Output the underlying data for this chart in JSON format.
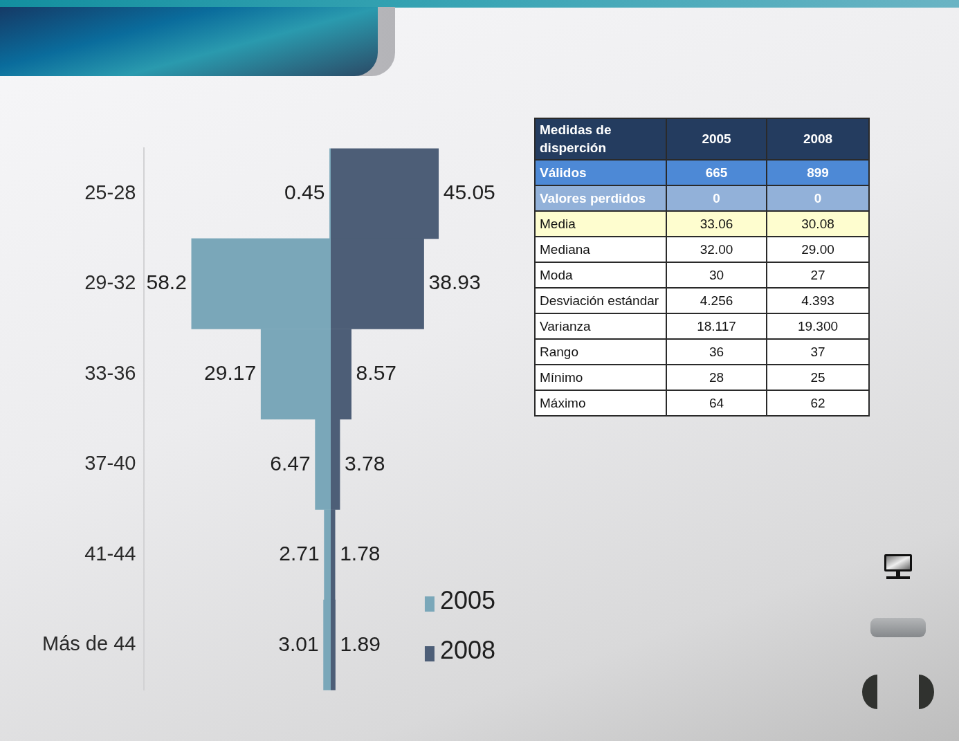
{
  "chart_data": [
    {
      "type": "bar",
      "orientation": "horizontal",
      "categories": [
        "25-28",
        "29-32",
        "33-36",
        "37-40",
        "41-44",
        "Más de 44"
      ],
      "series": [
        {
          "name": "2005",
          "color": "#7aa7b9",
          "values": [
            0.45,
            58.2,
            29.17,
            6.47,
            2.71,
            3.01
          ]
        }
      ],
      "xlim": [
        78,
        0
      ],
      "data_labels": true,
      "tick_labels": "y",
      "legend": "bottom right"
    },
    {
      "type": "bar",
      "orientation": "horizontal",
      "categories": [
        null,
        null,
        null,
        null,
        null,
        null
      ],
      "series": [
        {
          "name": "2008",
          "color": "#4d5e77",
          "values": [
            45.05,
            38.93,
            8.57,
            3.78,
            1.78,
            1.89
          ]
        }
      ],
      "data_labels": true,
      "tick_labels": false,
      "legend": "bottom right"
    },
    {
      "type": "other",
      "ylabel": "Medidas de disperción",
      "categories": [
        "2005",
        "2008"
      ],
      "y_categories": [
        "Válidos",
        "Valores perdidos",
        "Media",
        "Mediana",
        "Moda",
        "Desviación estándar",
        "Varianza",
        "Rango",
        "Mínimo",
        "Máximo"
      ],
      "cell_labels": [
        [
          "665",
          "899"
        ],
        [
          "0",
          "0"
        ],
        [
          "33.06",
          "30.08"
        ],
        [
          "32.00",
          "29.00"
        ],
        [
          "30",
          "27"
        ],
        [
          "4.256",
          "4.393"
        ],
        [
          "18.117",
          "19.300"
        ],
        [
          "36",
          "37"
        ],
        [
          "28",
          "25"
        ],
        [
          "64",
          "62"
        ]
      ]
    }
  ]
}
